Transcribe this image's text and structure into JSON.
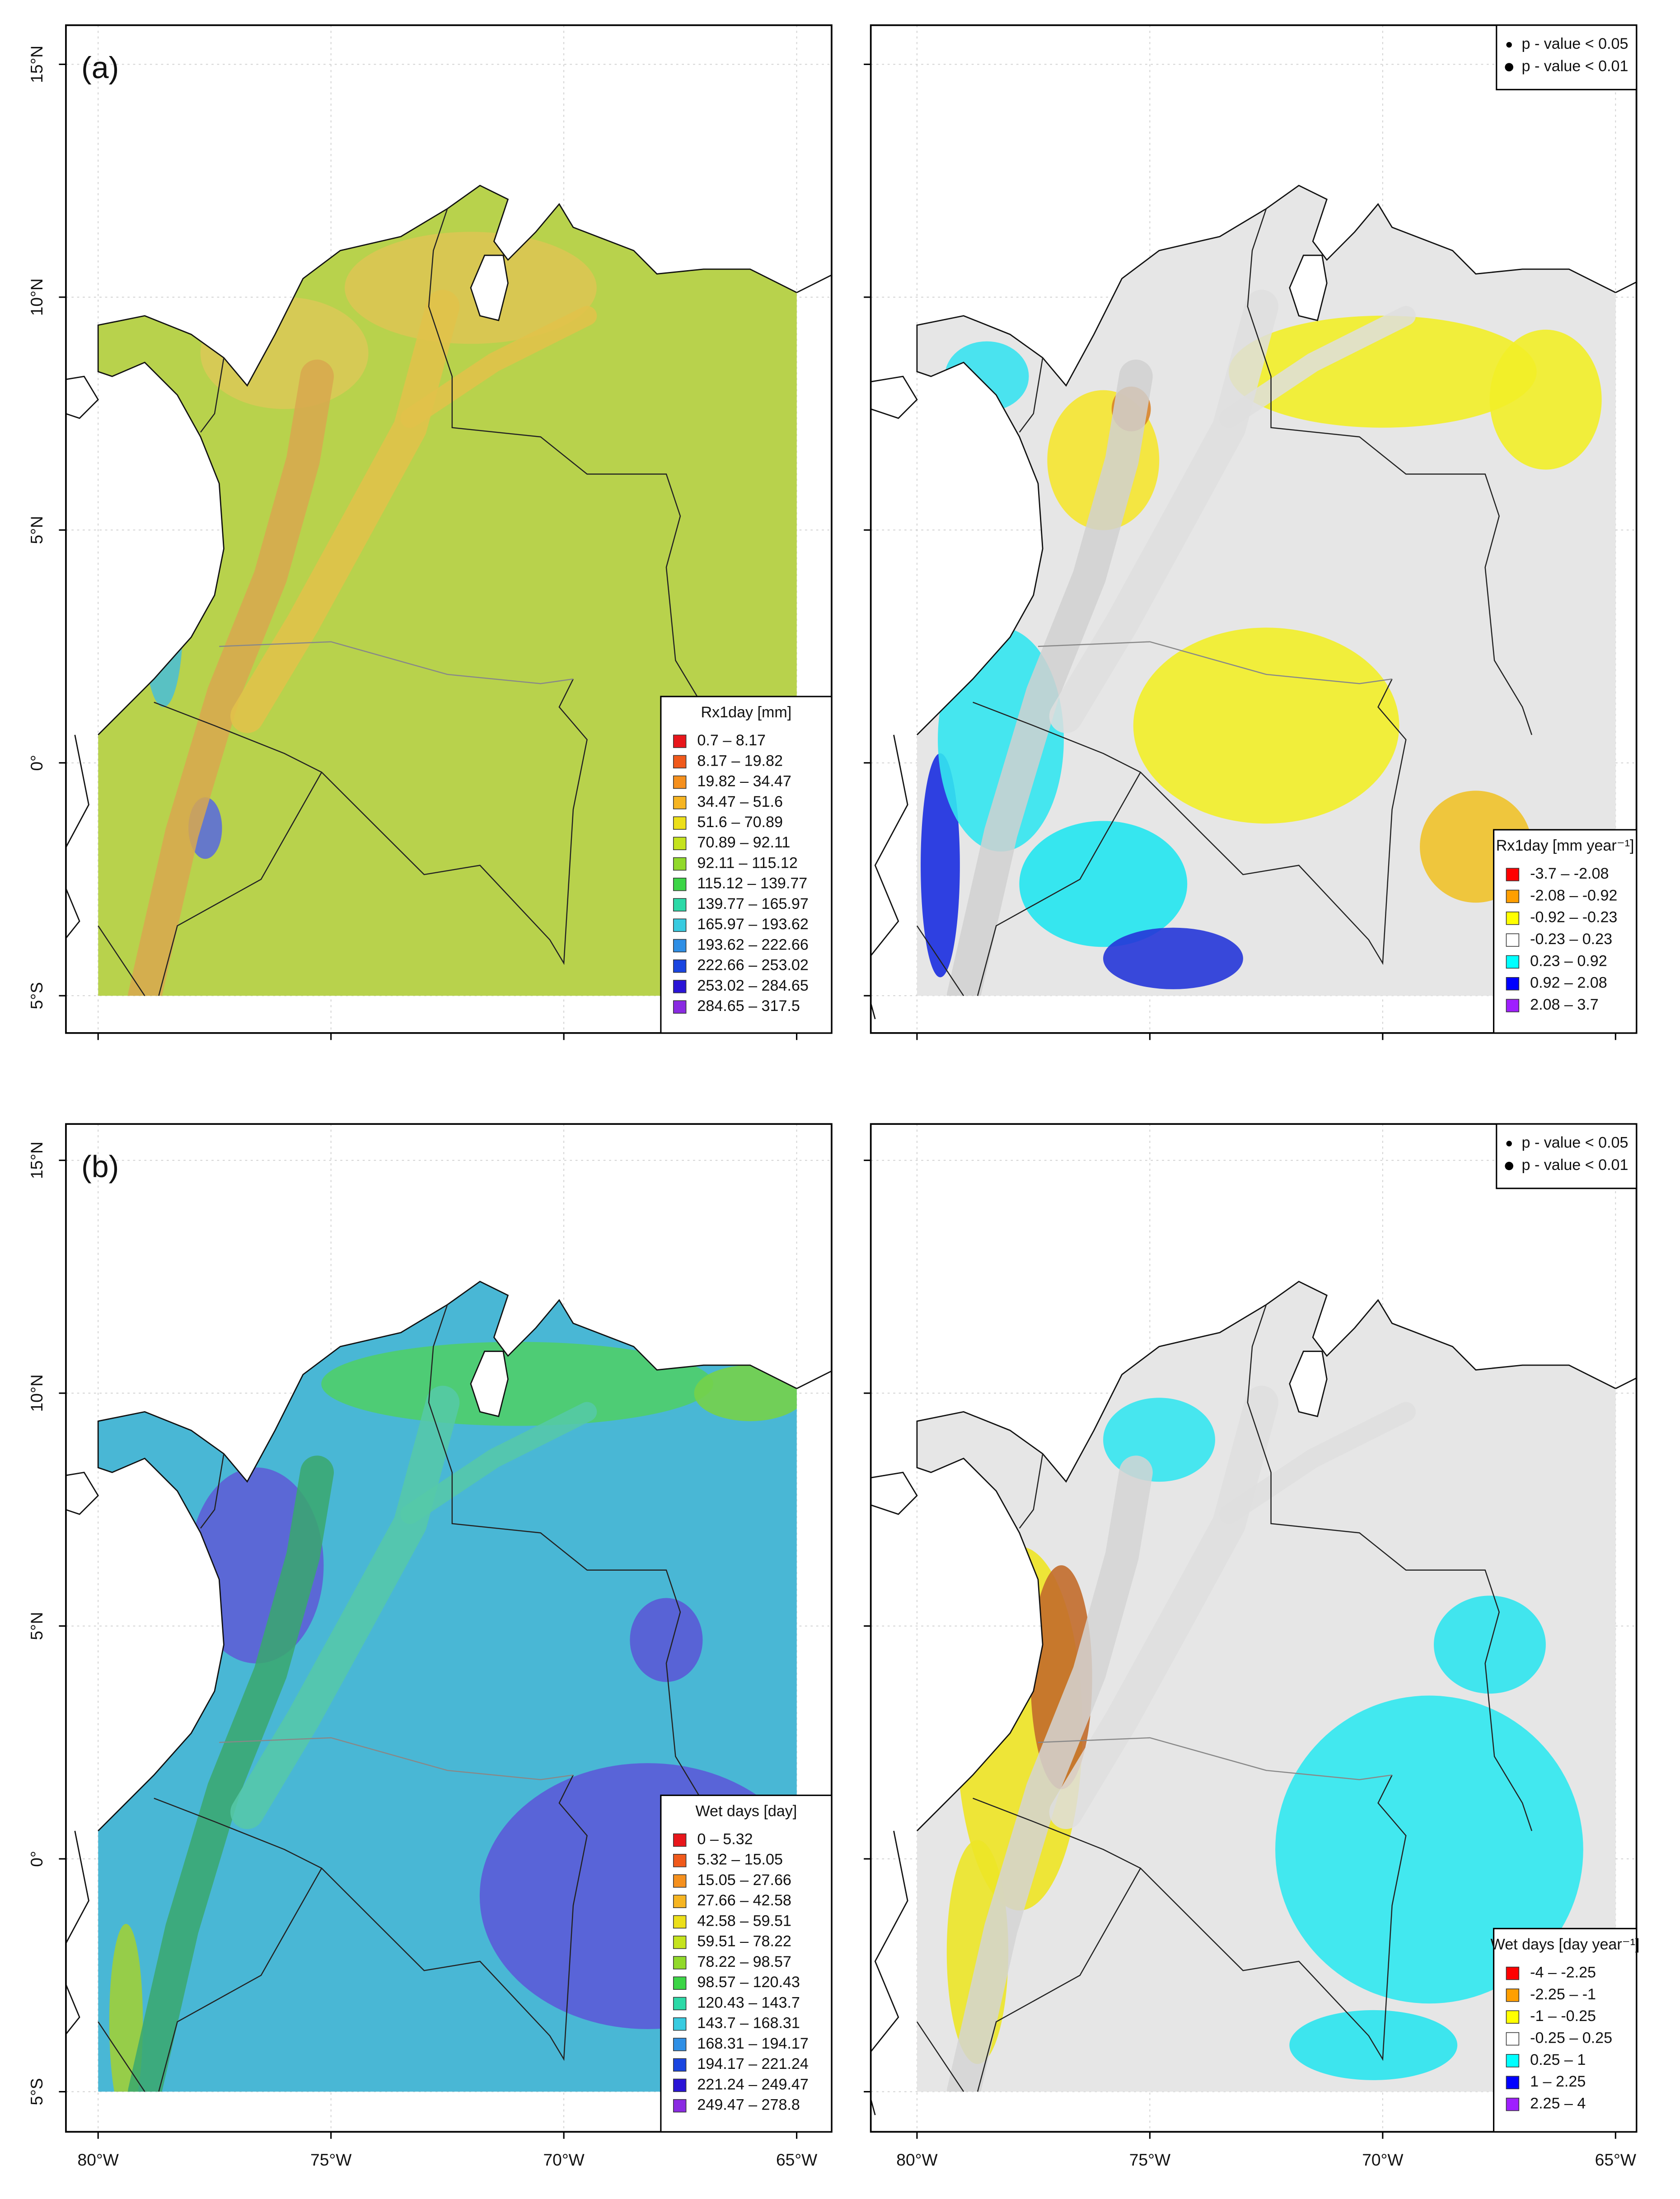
{
  "axes": {
    "lat_labels": [
      "15°N",
      "10°N",
      "5°N",
      "0°",
      "5°S"
    ],
    "lon_labels": [
      "80°W",
      "75°W",
      "70°W",
      "65°W"
    ]
  },
  "panels": [
    {
      "label": "(a)",
      "legend": {
        "title": "Rx1day [mm]",
        "items": [
          {
            "label": "0.7 – 8.17",
            "color": "#e8161b"
          },
          {
            "label": "8.17 – 19.82",
            "color": "#f0591b"
          },
          {
            "label": "19.82 – 34.47",
            "color": "#f5901e"
          },
          {
            "label": "34.47 – 51.6",
            "color": "#f6b522"
          },
          {
            "label": "51.6 – 70.89",
            "color": "#ecdf1a"
          },
          {
            "label": "70.89 – 92.11",
            "color": "#c5e31e"
          },
          {
            "label": "92.11 – 115.12",
            "color": "#91d92a"
          },
          {
            "label": "115.12 – 139.77",
            "color": "#3cd546"
          },
          {
            "label": "139.77 – 165.97",
            "color": "#2cd9a7"
          },
          {
            "label": "165.97 – 193.62",
            "color": "#38cbe0"
          },
          {
            "label": "193.62 – 222.66",
            "color": "#2f8fe5"
          },
          {
            "label": "222.66 – 253.02",
            "color": "#1a45e0"
          },
          {
            "label": "253.02 – 284.65",
            "color": "#2a14d6"
          },
          {
            "label": "284.65 – 317.5",
            "color": "#8a2be2"
          }
        ]
      }
    },
    {
      "significance": [
        "p - value < 0.05",
        "p - value < 0.01"
      ],
      "legend": {
        "title": "Rx1day [mm year⁻¹]",
        "items": [
          {
            "label": "-3.7 – -2.08",
            "color": "#ff0000"
          },
          {
            "label": "-2.08 – -0.92",
            "color": "#ff9f00"
          },
          {
            "label": "-0.92 – -0.23",
            "color": "#ffff00"
          },
          {
            "label": "-0.23 – 0.23",
            "color": "#ffffff"
          },
          {
            "label": "0.23 – 0.92",
            "color": "#00ffff"
          },
          {
            "label": "0.92 – 2.08",
            "color": "#0000ff"
          },
          {
            "label": "2.08 – 3.7",
            "color": "#9f1fff"
          }
        ]
      }
    },
    {
      "label": "(b)",
      "legend": {
        "title": "Wet days [day]",
        "items": [
          {
            "label": "0 – 5.32",
            "color": "#e8161b"
          },
          {
            "label": "5.32 – 15.05",
            "color": "#f0591b"
          },
          {
            "label": "15.05 – 27.66",
            "color": "#f5901e"
          },
          {
            "label": "27.66 – 42.58",
            "color": "#f6b522"
          },
          {
            "label": "42.58 – 59.51",
            "color": "#ecdf1a"
          },
          {
            "label": "59.51 – 78.22",
            "color": "#c5e31e"
          },
          {
            "label": "78.22 – 98.57",
            "color": "#91d92a"
          },
          {
            "label": "98.57 – 120.43",
            "color": "#3cd546"
          },
          {
            "label": "120.43 – 143.7",
            "color": "#2cd9a7"
          },
          {
            "label": "143.7 – 168.31",
            "color": "#38cbe0"
          },
          {
            "label": "168.31 – 194.17",
            "color": "#2f8fe5"
          },
          {
            "label": "194.17 – 221.24",
            "color": "#1a45e0"
          },
          {
            "label": "221.24 – 249.47",
            "color": "#2a14d6"
          },
          {
            "label": "249.47 – 278.8",
            "color": "#8a2be2"
          }
        ]
      }
    },
    {
      "significance": [
        "p - value < 0.05",
        "p - value < 0.01"
      ],
      "legend": {
        "title": "Wet days [day year⁻¹]",
        "items": [
          {
            "label": "-4 – -2.25",
            "color": "#ff0000"
          },
          {
            "label": "-2.25 – -1",
            "color": "#ff9f00"
          },
          {
            "label": "-1 – -0.25",
            "color": "#ffff00"
          },
          {
            "label": "-0.25 – 0.25",
            "color": "#ffffff"
          },
          {
            "label": "0.25 – 1",
            "color": "#00ffff"
          },
          {
            "label": "1 – 2.25",
            "color": "#0000ff"
          },
          {
            "label": "2.25 – 4",
            "color": "#9f1fff"
          }
        ]
      }
    }
  ]
}
